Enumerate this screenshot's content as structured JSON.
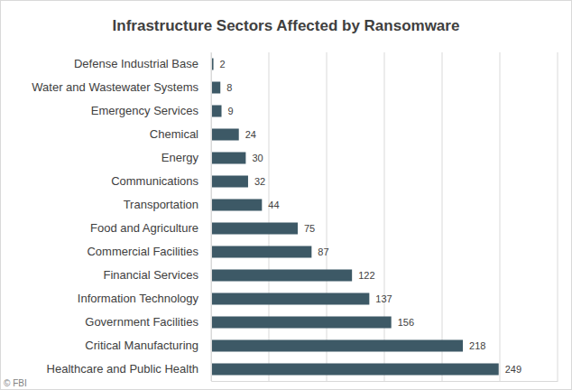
{
  "chart_data": {
    "type": "bar",
    "orientation": "horizontal",
    "title": "Infrastructure Sectors Affected by Ransomware",
    "annotation": "© FBI",
    "categories": [
      "Defense Industrial Base",
      "Water and Wastewater Systems",
      "Emergency Services",
      "Chemical",
      "Energy",
      "Communications",
      "Transportation",
      "Food and Agriculture",
      "Commercial Facilities",
      "Financial Services",
      "Information Technology",
      "Government Facilities",
      "Critical Manufacturing",
      "Healthcare and Public Health"
    ],
    "values": [
      2,
      8,
      9,
      24,
      30,
      32,
      44,
      75,
      87,
      122,
      137,
      156,
      218,
      249
    ],
    "color": "#3d5966",
    "xlim": [
      0,
      300
    ],
    "xticks": [
      0,
      50,
      100,
      150,
      200,
      250,
      300
    ],
    "grid": true,
    "data_labels": true,
    "tick_labels": "y"
  }
}
